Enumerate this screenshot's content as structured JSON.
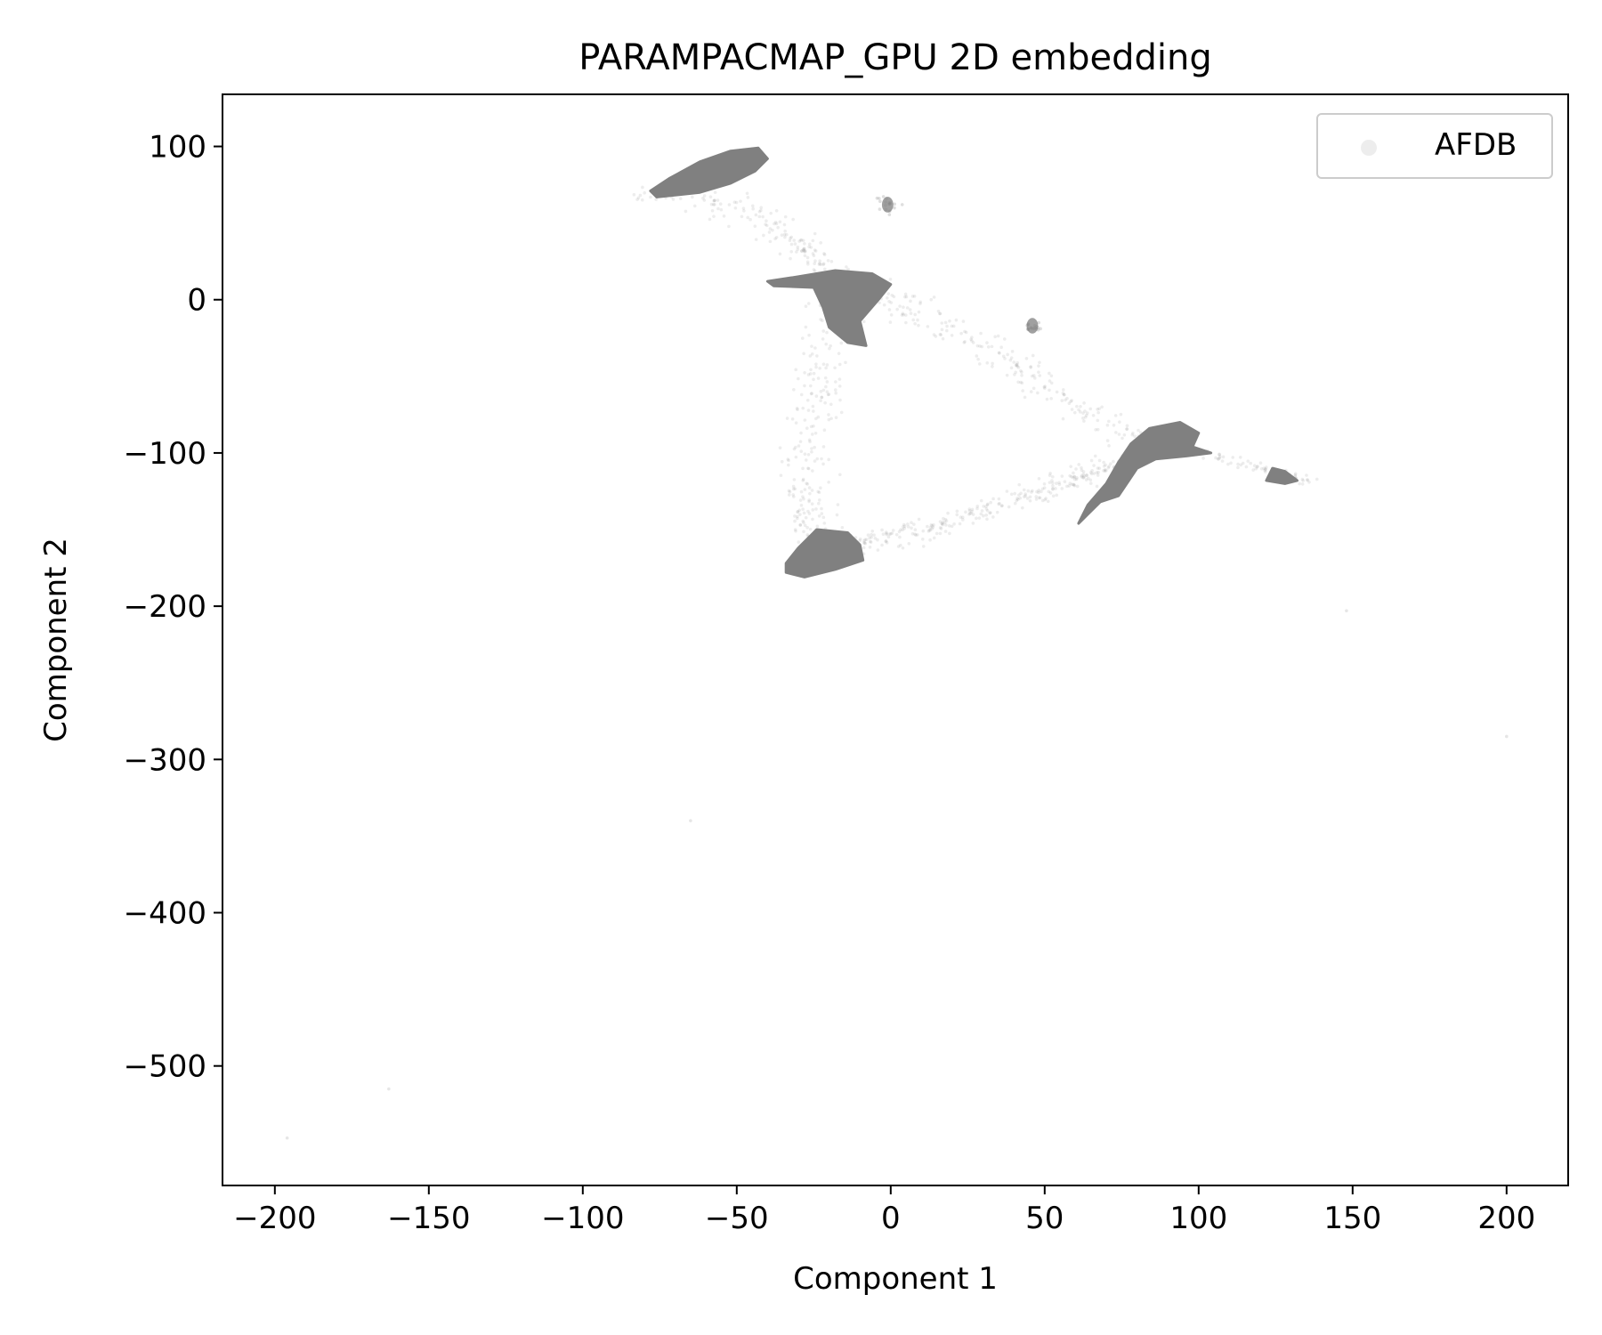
{
  "chart_data": {
    "type": "scatter",
    "title": "PARAMPACMAP_GPU 2D embedding",
    "xlabel": "Component 1",
    "ylabel": "Component 2",
    "xlim": [
      -217,
      220
    ],
    "ylim": [
      -578,
      134
    ],
    "x_ticks": [
      -200,
      -150,
      -100,
      -50,
      0,
      50,
      100,
      150,
      200
    ],
    "y_ticks": [
      100,
      0,
      -100,
      -200,
      -300,
      -400,
      -500
    ],
    "x_tick_labels": [
      "−200",
      "−150",
      "−100",
      "−50",
      "0",
      "50",
      "100",
      "150",
      "200"
    ],
    "y_tick_labels": [
      "100",
      "0",
      "−100",
      "−200",
      "−300",
      "−400",
      "−500"
    ],
    "grid": false,
    "legend_position": "top-right",
    "colors": {
      "points": "#808080"
    },
    "series": [
      {
        "name": "AFDB",
        "dense_clusters": [
          {
            "outline": [
              [
                -76,
                67
              ],
              [
                -62,
                70
              ],
              [
                -52,
                76
              ],
              [
                -44,
                84
              ],
              [
                -40,
                92
              ],
              [
                -43,
                99
              ],
              [
                -52,
                97
              ],
              [
                -62,
                90
              ],
              [
                -72,
                79
              ],
              [
                -78,
                71
              ]
            ]
          },
          {
            "outline": [
              [
                -40,
                12
              ],
              [
                -30,
                15
              ],
              [
                -18,
                19
              ],
              [
                -6,
                17
              ],
              [
                0,
                10
              ],
              [
                -4,
                0
              ],
              [
                -10,
                -14
              ],
              [
                -8,
                -30
              ],
              [
                -14,
                -28
              ],
              [
                -20,
                -18
              ],
              [
                -22,
                -5
              ],
              [
                -25,
                8
              ],
              [
                -38,
                9
              ]
            ]
          },
          {
            "outline": [
              [
                -34,
                -178
              ],
              [
                -28,
                -181
              ],
              [
                -18,
                -176
              ],
              [
                -9,
                -170
              ],
              [
                -10,
                -160
              ],
              [
                -14,
                -152
              ],
              [
                -24,
                -150
              ],
              [
                -30,
                -162
              ],
              [
                -34,
                -172
              ]
            ]
          },
          {
            "outline": [
              [
                61,
                -146
              ],
              [
                64,
                -134
              ],
              [
                70,
                -120
              ],
              [
                74,
                -106
              ],
              [
                78,
                -94
              ],
              [
                84,
                -84
              ],
              [
                94,
                -80
              ],
              [
                100,
                -87
              ],
              [
                98,
                -96
              ],
              [
                104,
                -100
              ],
              [
                96,
                -102
              ],
              [
                86,
                -104
              ],
              [
                80,
                -110
              ],
              [
                74,
                -128
              ],
              [
                68,
                -132
              ],
              [
                64,
                -140
              ]
            ]
          },
          {
            "outline": [
              [
                122,
                -118
              ],
              [
                128,
                -120
              ],
              [
                132,
                -118
              ],
              [
                128,
                -112
              ],
              [
                124,
                -110
              ]
            ]
          }
        ],
        "small_clusters": [
          {
            "x": -1,
            "y": 62,
            "r": 4
          },
          {
            "x": 46,
            "y": -17,
            "r": 4
          }
        ],
        "sparse_regions": [
          {
            "path": [
              [
                -80,
                70
              ],
              [
                -50,
                60
              ],
              [
                -30,
                40
              ],
              [
                -20,
                15
              ]
            ],
            "spread": 14,
            "count": 160
          },
          {
            "path": [
              [
                -20,
                0
              ],
              [
                -25,
                -60
              ],
              [
                -28,
                -120
              ],
              [
                -25,
                -160
              ]
            ],
            "spread": 16,
            "count": 220
          },
          {
            "path": [
              [
                -10,
                -160
              ],
              [
                20,
                -145
              ],
              [
                50,
                -125
              ],
              [
                75,
                -105
              ]
            ],
            "spread": 12,
            "count": 280
          },
          {
            "path": [
              [
                -10,
                10
              ],
              [
                30,
                -30
              ],
              [
                60,
                -70
              ],
              [
                85,
                -95
              ]
            ],
            "spread": 14,
            "count": 220
          },
          {
            "path": [
              [
                100,
                -100
              ],
              [
                120,
                -110
              ],
              [
                137,
                -118
              ]
            ],
            "spread": 6,
            "count": 60
          }
        ],
        "outliers": [
          [
            -196,
            -547
          ],
          [
            -163,
            -515
          ],
          [
            -65,
            -340
          ],
          [
            200,
            -285
          ],
          [
            148,
            -203
          ]
        ]
      }
    ]
  }
}
